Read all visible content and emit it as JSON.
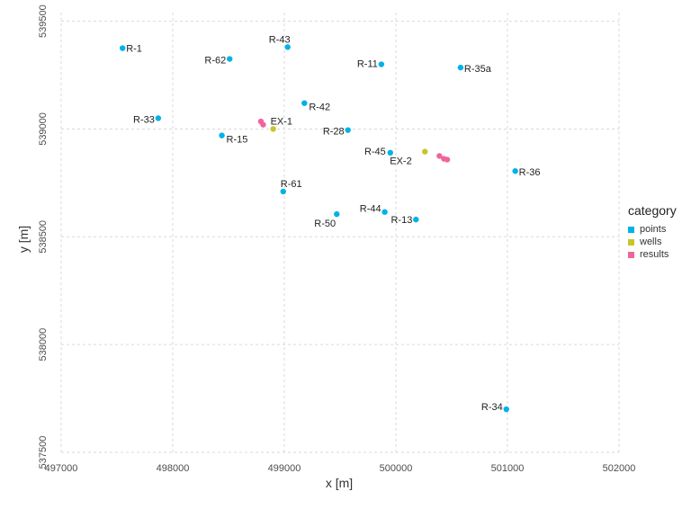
{
  "chart_data": {
    "type": "scatter",
    "xlabel": "x [m]",
    "ylabel": "y [m]",
    "xlim": [
      497000,
      502000
    ],
    "ylim": [
      537500,
      539540
    ],
    "xticks": [
      497000,
      498000,
      499000,
      500000,
      501000,
      502000
    ],
    "yticks": [
      537500,
      538000,
      538500,
      539000,
      539500
    ],
    "grid": true,
    "legend": {
      "title": "category",
      "placement": "right",
      "entries": [
        {
          "name": "points",
          "color": "#00B2E8"
        },
        {
          "name": "wells",
          "color": "#C9C429"
        },
        {
          "name": "results",
          "color": "#F0649E"
        }
      ]
    },
    "series": [
      {
        "name": "points",
        "color": "#00B2E8",
        "points": [
          {
            "label": "R-1",
            "x": 497550,
            "y": 539375
          },
          {
            "label": "R-62",
            "x": 498510,
            "y": 539325
          },
          {
            "label": "R-43",
            "x": 499030,
            "y": 539380
          },
          {
            "label": "R-11",
            "x": 499870,
            "y": 539300
          },
          {
            "label": "R-35a",
            "x": 500580,
            "y": 539285
          },
          {
            "label": "R-42",
            "x": 499180,
            "y": 539120
          },
          {
            "label": "R-33",
            "x": 497870,
            "y": 539050
          },
          {
            "label": "R-15",
            "x": 498440,
            "y": 538970
          },
          {
            "label": "R-28",
            "x": 499570,
            "y": 538995
          },
          {
            "label": "R-45",
            "x": 499950,
            "y": 538890
          },
          {
            "label": "R-36",
            "x": 501070,
            "y": 538805
          },
          {
            "label": "R-61",
            "x": 498990,
            "y": 538710
          },
          {
            "label": "R-44",
            "x": 499900,
            "y": 538615
          },
          {
            "label": "R-13",
            "x": 500180,
            "y": 538580
          },
          {
            "label": "R-50",
            "x": 499470,
            "y": 538605
          },
          {
            "label": "R-34",
            "x": 500990,
            "y": 537700
          }
        ]
      },
      {
        "name": "wells",
        "color": "#C9C429",
        "points": [
          {
            "label": "EX-1",
            "x": 498900,
            "y": 539000
          },
          {
            "label": "EX-2",
            "x": 500260,
            "y": 538895
          }
        ]
      },
      {
        "name": "results",
        "color": "#F0649E",
        "points": [
          {
            "label": "",
            "x": 498790,
            "y": 539035
          },
          {
            "label": "",
            "x": 498810,
            "y": 539020
          },
          {
            "label": "",
            "x": 500390,
            "y": 538875
          },
          {
            "label": "",
            "x": 500430,
            "y": 538862
          },
          {
            "label": "",
            "x": 500460,
            "y": 538858
          }
        ]
      }
    ]
  }
}
